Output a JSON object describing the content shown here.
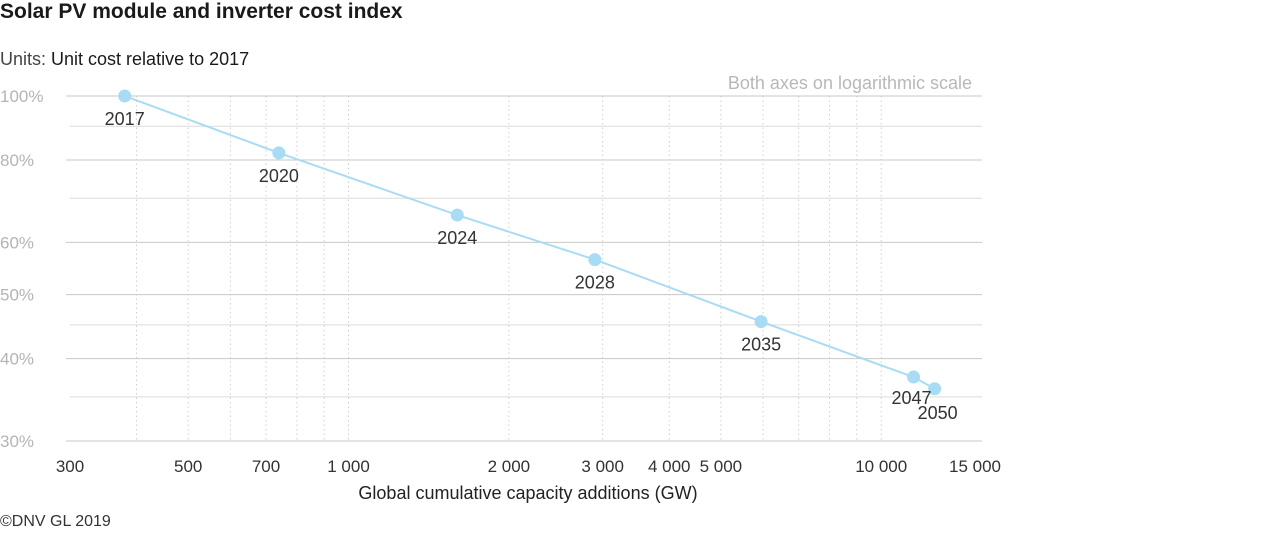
{
  "title": "Solar PV module and inverter cost index",
  "units_label": "Units:",
  "units_value": "Unit cost relative to 2017",
  "copyright": "©DNV GL 2019",
  "colors": {
    "series": "#a8dcf4",
    "line": "#a8dcf4",
    "major_grid": "#c8c8c8",
    "minor_grid": "#cfcfcf",
    "y_tick_text": "#b4b4b4",
    "annotation_text": "#b8b8b8"
  },
  "chart_data": {
    "type": "line",
    "title": "Solar PV module and inverter cost index",
    "xlabel": "Global cumulative capacity additions (GW)",
    "ylabel": "",
    "annotation": "Both axes on logarithmic scale",
    "x_scale": "log",
    "y_scale": "log",
    "xlim": [
      300,
      15000
    ],
    "ylim": [
      30,
      100
    ],
    "x_ticks": [
      300,
      500,
      700,
      1000,
      2000,
      3000,
      4000,
      5000,
      10000,
      15000
    ],
    "x_tick_labels": [
      "300",
      "500",
      "700",
      "1 000",
      "2 000",
      "3 000",
      "4 000",
      "5 000",
      "10 000",
      "15 000"
    ],
    "y_ticks": [
      30,
      40,
      50,
      60,
      80,
      100
    ],
    "y_tick_labels": [
      "30%",
      "40%",
      "50%",
      "60%",
      "80%",
      "100%"
    ],
    "x_minor_gridlines": [
      400,
      500,
      600,
      700,
      800,
      900,
      1000,
      2000,
      3000,
      4000,
      5000,
      6000,
      7000,
      8000,
      9000,
      10000
    ],
    "y_minor_gridlines": [
      35,
      45,
      70,
      90
    ],
    "grid": true,
    "legend": "none",
    "series": [
      {
        "points": [
          {
            "x": 380,
            "y": 100,
            "label": "2017"
          },
          {
            "x": 740,
            "y": 82,
            "label": "2020"
          },
          {
            "x": 1600,
            "y": 66,
            "label": "2024"
          },
          {
            "x": 2900,
            "y": 56.5,
            "label": "2028"
          },
          {
            "x": 5950,
            "y": 45.5,
            "label": "2035"
          },
          {
            "x": 11500,
            "y": 37.5,
            "label": "2047"
          },
          {
            "x": 12600,
            "y": 36,
            "label": "2050"
          }
        ]
      }
    ]
  }
}
